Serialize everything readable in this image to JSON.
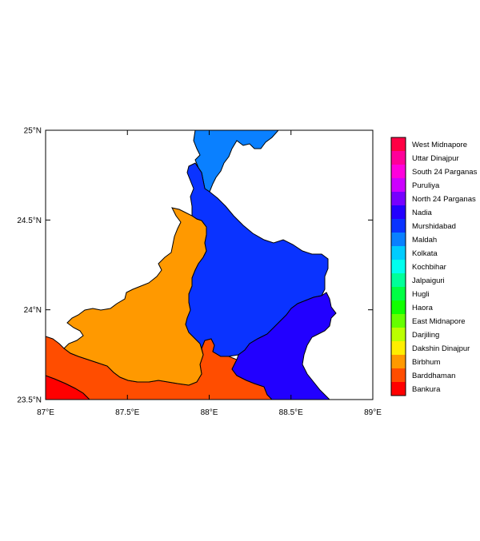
{
  "map": {
    "lon_ticks": [
      "87°E",
      "87.5°E",
      "88°E",
      "88.5°E",
      "89°E"
    ],
    "lat_ticks": [
      "25°N",
      "24.5°N",
      "24°N",
      "23.5°N"
    ],
    "lon_range": [
      87,
      89
    ],
    "lat_range": [
      23.5,
      25
    ],
    "regions": [
      {
        "name": "Maldah",
        "color": "#0a80ff"
      },
      {
        "name": "Murshidabad",
        "color": "#0a33ff"
      },
      {
        "name": "Nadia",
        "color": "#2200ff"
      },
      {
        "name": "Birbhum",
        "color": "#ff9900"
      },
      {
        "name": "Barddhaman",
        "color": "#ff4d00"
      },
      {
        "name": "Bankura",
        "color": "#ff0000"
      }
    ]
  },
  "legend": {
    "items": [
      {
        "label": "West Midnapore",
        "color": "#ff0044"
      },
      {
        "label": "Uttar Dinajpur",
        "color": "#ff0099"
      },
      {
        "label": "South 24 Parganas",
        "color": "#ff00dd"
      },
      {
        "label": "Puruliya",
        "color": "#cc00ff"
      },
      {
        "label": "North 24 Parganas",
        "color": "#7700ff"
      },
      {
        "label": "Nadia",
        "color": "#2200ff"
      },
      {
        "label": "Murshidabad",
        "color": "#0a33ff"
      },
      {
        "label": "Maldah",
        "color": "#0a80ff"
      },
      {
        "label": "Kolkata",
        "color": "#00ccff"
      },
      {
        "label": "Kochbihar",
        "color": "#00ffee"
      },
      {
        "label": "Jalpaiguri",
        "color": "#00ff99"
      },
      {
        "label": "Hugli",
        "color": "#00ff44"
      },
      {
        "label": "Haora",
        "color": "#11ff00"
      },
      {
        "label": "East Midnapore",
        "color": "#66ff00"
      },
      {
        "label": "Darjiling",
        "color": "#bbff00"
      },
      {
        "label": "Dakshin Dinajpur",
        "color": "#ffee00"
      },
      {
        "label": "Birbhum",
        "color": "#ff9900"
      },
      {
        "label": "Barddhaman",
        "color": "#ff4d00"
      },
      {
        "label": "Bankura",
        "color": "#ff0000"
      }
    ]
  }
}
